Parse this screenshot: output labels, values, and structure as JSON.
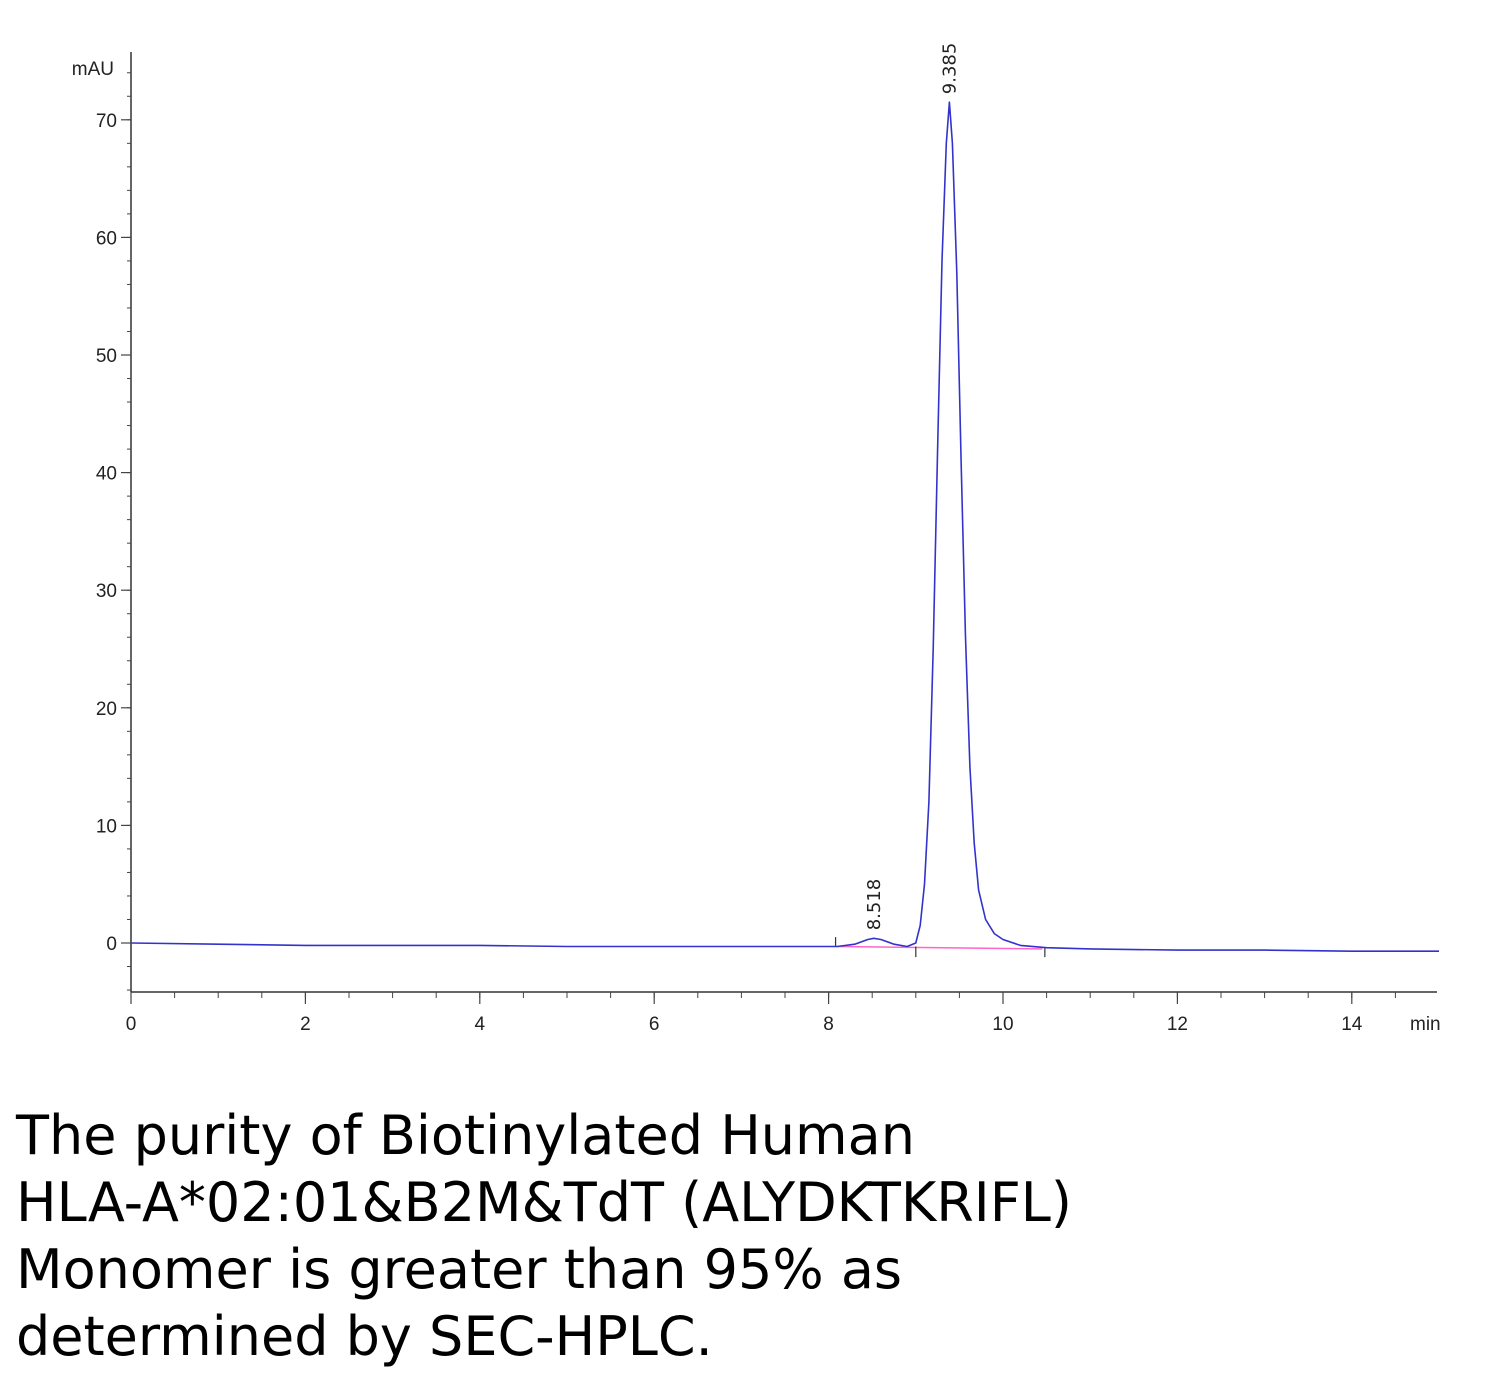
{
  "chart_data": {
    "type": "line",
    "xlabel": "min",
    "ylabel": "mAU",
    "xlim": [
      0,
      15
    ],
    "ylim": [
      -4,
      75
    ],
    "x_ticks": [
      0,
      2,
      4,
      6,
      8,
      10,
      12,
      14
    ],
    "y_ticks": [
      0,
      10,
      20,
      30,
      40,
      50,
      60,
      70
    ],
    "grid": false,
    "series": [
      {
        "color": "#3333cc",
        "x": [
          0,
          1,
          2,
          3,
          4,
          5,
          6,
          7,
          8,
          8.1,
          8.3,
          8.45,
          8.518,
          8.6,
          8.75,
          8.9,
          9.0,
          9.05,
          9.1,
          9.15,
          9.2,
          9.25,
          9.3,
          9.35,
          9.385,
          9.42,
          9.47,
          9.52,
          9.57,
          9.62,
          9.67,
          9.72,
          9.8,
          9.9,
          10.0,
          10.2,
          10.5,
          11,
          12,
          13,
          14,
          15
        ],
        "y": [
          0,
          -0.1,
          -0.2,
          -0.2,
          -0.2,
          -0.3,
          -0.3,
          -0.3,
          -0.3,
          -0.3,
          -0.1,
          0.3,
          0.4,
          0.3,
          -0.1,
          -0.3,
          0.0,
          1.5,
          5,
          12,
          25,
          42,
          58,
          68,
          71.5,
          68,
          57,
          41,
          26,
          15,
          8.5,
          4.5,
          2.0,
          0.8,
          0.3,
          -0.2,
          -0.4,
          -0.5,
          -0.6,
          -0.6,
          -0.7,
          -0.7
        ]
      }
    ],
    "baseline": {
      "color": "#ff66cc",
      "x": [
        8.1,
        10.45
      ],
      "y": [
        -0.3,
        -0.5
      ]
    },
    "annotations": [
      {
        "text": "8.518",
        "x": 8.518,
        "y": 0.4
      },
      {
        "text": "9.385",
        "x": 9.385,
        "y": 71.5
      }
    ]
  },
  "caption": {
    "lines": [
      "The purity of Biotinylated Human",
      "HLA-A*02:01&B2M&TdT (ALYDKTKRIFL)",
      "Monomer is greater than 95% as",
      "determined by SEC-HPLC."
    ]
  }
}
